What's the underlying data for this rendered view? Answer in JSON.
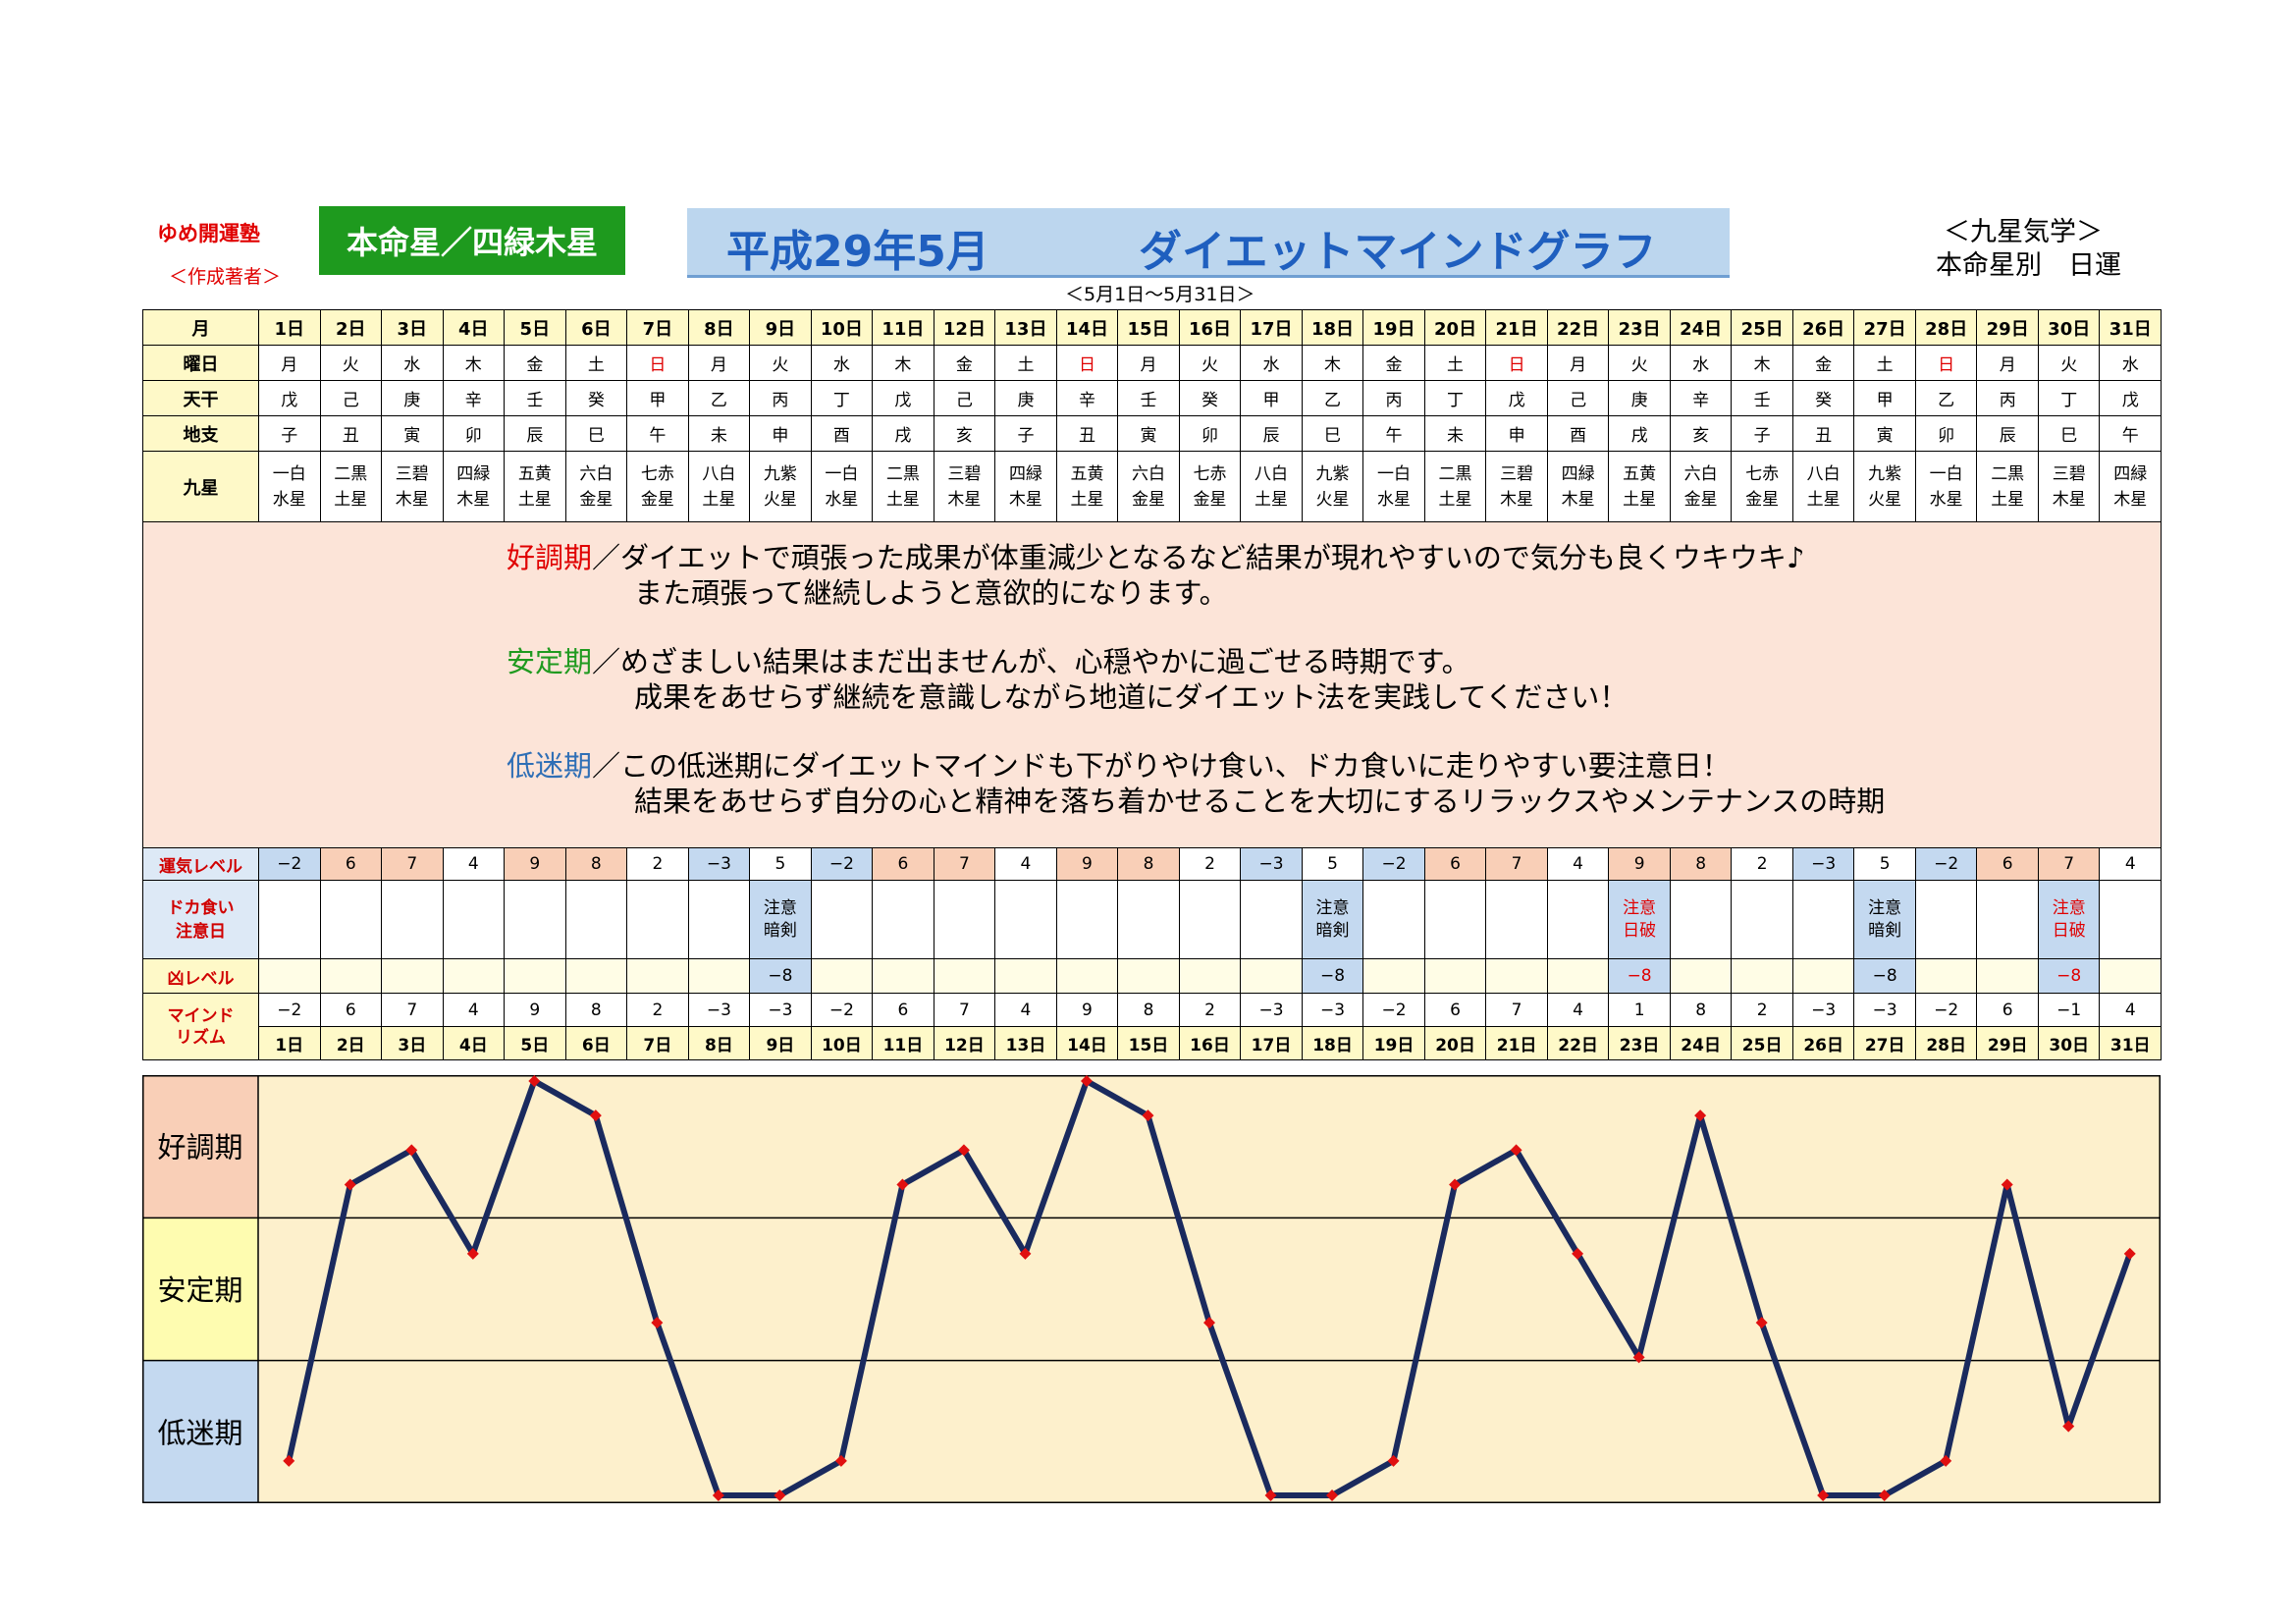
{
  "header": {
    "school": "ゆめ開運塾",
    "author": "＜作成著者＞",
    "honmei": "本命星／四緑木星",
    "title_date": "平成29年5月",
    "title_main": "ダイエットマインドグラフ",
    "period": "＜5月1日～5月31日＞",
    "kigaku": "＜九星気学＞",
    "honmeibetsu": "本命星別　日運"
  },
  "colors": {
    "good": "#f9cfb7",
    "stable": "#fefcb0",
    "low": "#c4d9f0",
    "line": "#1a2a5e",
    "marker": "#e01010",
    "plot_bg": "#fdf0cc"
  },
  "labels": {
    "month": "月",
    "weekday": "曜日",
    "tenkan": "天干",
    "chishi": "地支",
    "kyusei": "九星",
    "unki": "運気レベル",
    "dokagui_1": "ドカ食い",
    "dokagui_2": "注意日",
    "kyo": "凶レベル",
    "mind_1": "マインド",
    "mind_2": "リズム"
  },
  "days": [
    "1日",
    "2日",
    "3日",
    "4日",
    "5日",
    "6日",
    "7日",
    "8日",
    "9日",
    "10日",
    "11日",
    "12日",
    "13日",
    "14日",
    "15日",
    "16日",
    "17日",
    "18日",
    "19日",
    "20日",
    "21日",
    "22日",
    "23日",
    "24日",
    "25日",
    "26日",
    "27日",
    "28日",
    "29日",
    "30日",
    "31日"
  ],
  "weekdays": [
    "月",
    "火",
    "水",
    "木",
    "金",
    "土",
    "日",
    "月",
    "火",
    "水",
    "木",
    "金",
    "土",
    "日",
    "月",
    "火",
    "水",
    "木",
    "金",
    "土",
    "日",
    "月",
    "火",
    "水",
    "木",
    "金",
    "土",
    "日",
    "月",
    "火",
    "水"
  ],
  "tenkan": [
    "戊",
    "己",
    "庚",
    "辛",
    "壬",
    "癸",
    "甲",
    "乙",
    "丙",
    "丁",
    "戊",
    "己",
    "庚",
    "辛",
    "壬",
    "癸",
    "甲",
    "乙",
    "丙",
    "丁",
    "戊",
    "己",
    "庚",
    "辛",
    "壬",
    "癸",
    "甲",
    "乙",
    "丙",
    "丁",
    "戊"
  ],
  "chishi": [
    "子",
    "丑",
    "寅",
    "卯",
    "辰",
    "巳",
    "午",
    "未",
    "申",
    "酉",
    "戌",
    "亥",
    "子",
    "丑",
    "寅",
    "卯",
    "辰",
    "巳",
    "午",
    "未",
    "申",
    "酉",
    "戌",
    "亥",
    "子",
    "丑",
    "寅",
    "卯",
    "辰",
    "巳",
    "午"
  ],
  "kyusei_top": [
    "一白",
    "二黒",
    "三碧",
    "四緑",
    "五黄",
    "六白",
    "七赤",
    "八白",
    "九紫",
    "一白",
    "二黒",
    "三碧",
    "四緑",
    "五黄",
    "六白",
    "七赤",
    "八白",
    "九紫",
    "一白",
    "二黒",
    "三碧",
    "四緑",
    "五黄",
    "六白",
    "七赤",
    "八白",
    "九紫",
    "一白",
    "二黒",
    "三碧",
    "四緑"
  ],
  "kyusei_bottom": [
    "水星",
    "土星",
    "木星",
    "木星",
    "土星",
    "金星",
    "金星",
    "土星",
    "火星",
    "水星",
    "土星",
    "木星",
    "木星",
    "土星",
    "金星",
    "金星",
    "土星",
    "火星",
    "水星",
    "土星",
    "木星",
    "木星",
    "土星",
    "金星",
    "金星",
    "土星",
    "火星",
    "水星",
    "土星",
    "木星",
    "木星"
  ],
  "description": [
    {
      "phase": "好調期",
      "cls": "phase-good",
      "line1": "／ダイエットで頑張った成果が体重減少となるなど結果が現れやすいので気分も良くウキウキ♪",
      "line2": "また頑張って継続しようと意欲的になります。"
    },
    {
      "phase": "安定期",
      "cls": "phase-stable",
      "line1": "／めざましい結果はまだ出ませんが、心穏やかに過ごせる時期です。",
      "line2": "成果をあせらず継続を意識しながら地道にダイエット法を実践してください！"
    },
    {
      "phase": "低迷期",
      "cls": "phase-low",
      "line1": "／この低迷期にダイエットマインドも下がりやけ食い、ドカ食いに走りやすい要注意日！",
      "line2": "結果をあせらず自分の心と精神を落ち着かせることを大切にするリラックスやメンテナンスの時期"
    }
  ],
  "unki": [
    "−2",
    "6",
    "7",
    "4",
    "9",
    "8",
    "2",
    "−3",
    "5",
    "−2",
    "6",
    "7",
    "4",
    "9",
    "8",
    "2",
    "−3",
    "5",
    "−2",
    "6",
    "7",
    "4",
    "9",
    "8",
    "2",
    "−3",
    "5",
    "−2",
    "6",
    "7",
    "4"
  ],
  "warnings": [
    {
      "day": 9,
      "l1": "注意",
      "l2": "暗剣",
      "red": false
    },
    {
      "day": 18,
      "l1": "注意",
      "l2": "暗剣",
      "red": false
    },
    {
      "day": 23,
      "l1": "注意",
      "l2": "日破",
      "red": true
    },
    {
      "day": 27,
      "l1": "注意",
      "l2": "暗剣",
      "red": false
    },
    {
      "day": 30,
      "l1": "注意",
      "l2": "日破",
      "red": true
    }
  ],
  "kyo_value": "−8",
  "mind": [
    "−2",
    "6",
    "7",
    "4",
    "9",
    "8",
    "2",
    "−3",
    "−3",
    "−2",
    "6",
    "7",
    "4",
    "9",
    "8",
    "2",
    "−3",
    "−3",
    "−2",
    "6",
    "7",
    "4",
    "1",
    "8",
    "2",
    "−3",
    "−3",
    "−2",
    "6",
    "−1",
    "4"
  ],
  "chart_data": {
    "type": "line",
    "x": [
      "1日",
      "2日",
      "3日",
      "4日",
      "5日",
      "6日",
      "7日",
      "8日",
      "9日",
      "10日",
      "11日",
      "12日",
      "13日",
      "14日",
      "15日",
      "16日",
      "17日",
      "18日",
      "19日",
      "20日",
      "21日",
      "22日",
      "23日",
      "24日",
      "25日",
      "26日",
      "27日",
      "28日",
      "29日",
      "30日",
      "31日"
    ],
    "series": [
      {
        "values": [
          -2,
          6,
          7,
          4,
          9,
          8,
          2,
          -3,
          -3,
          -2,
          6,
          7,
          4,
          9,
          8,
          2,
          -3,
          -3,
          -2,
          6,
          7,
          4,
          1,
          8,
          2,
          -3,
          -3,
          -2,
          6,
          -1,
          4
        ]
      }
    ],
    "ylim": [
      -3,
      9
    ],
    "bands": [
      "好調期",
      "安定期",
      "低迷期"
    ]
  }
}
